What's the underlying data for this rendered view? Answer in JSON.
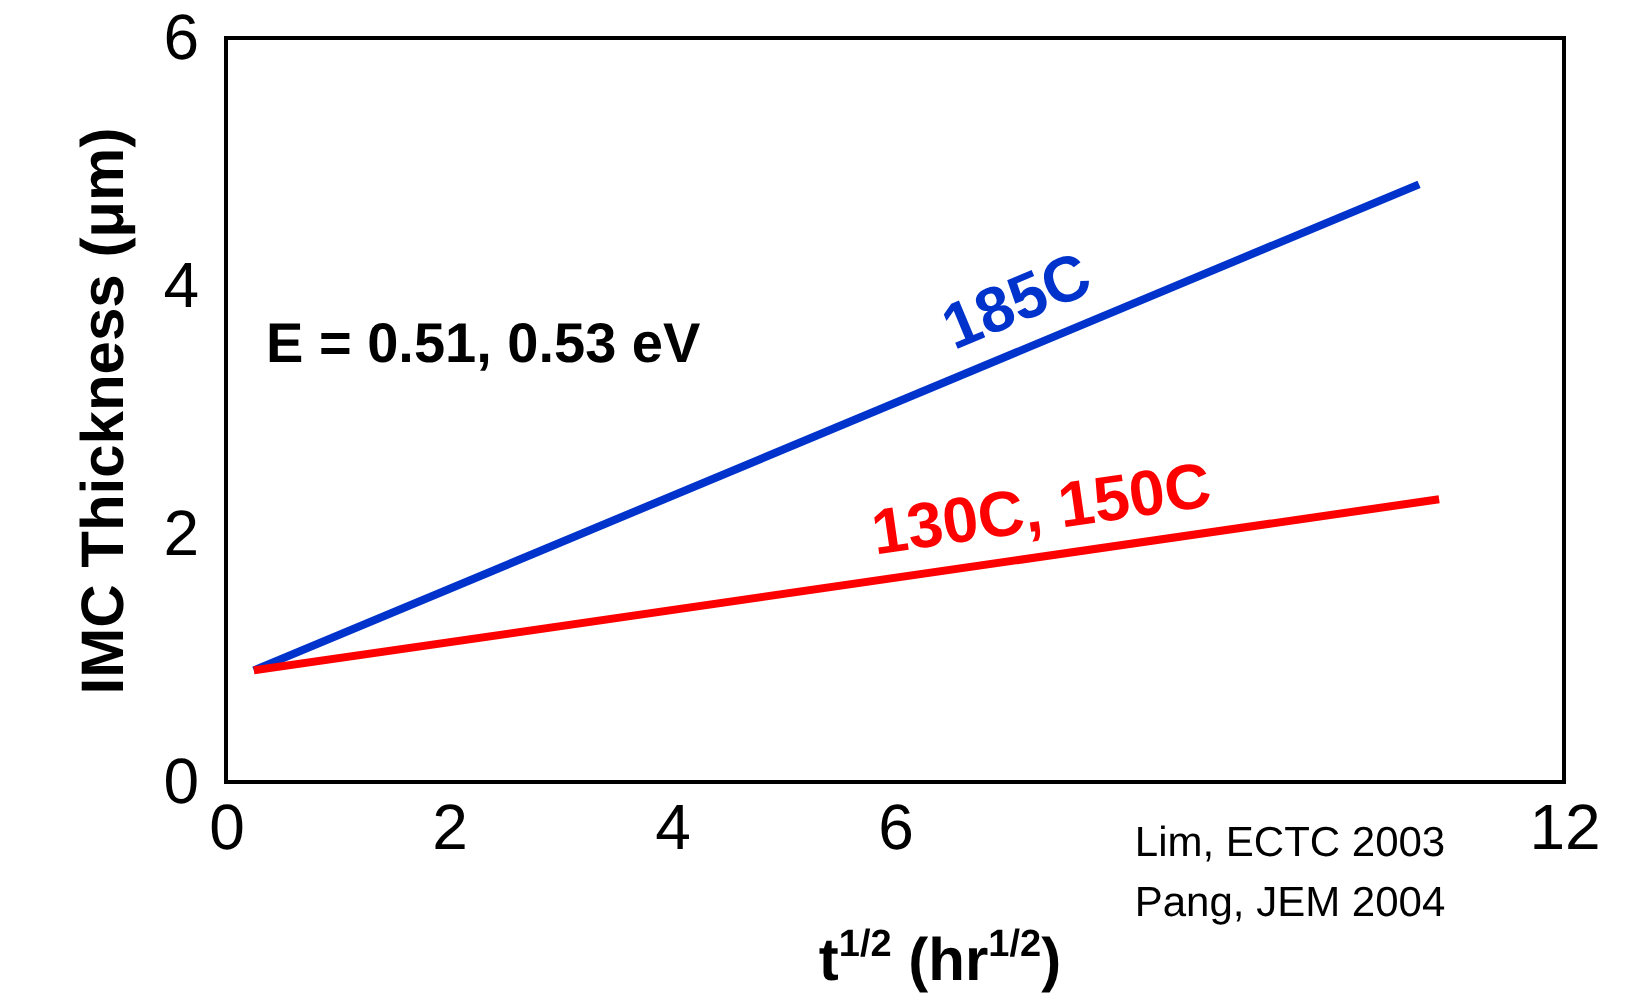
{
  "chart_data": {
    "type": "line",
    "xlabel": "t$^{1/2}$ (hr$^{1/2}$)",
    "ylabel": "IMC Thickness (μm)",
    "xlim": [
      0,
      12
    ],
    "xticks": [
      0,
      2,
      4,
      6,
      12
    ],
    "ylim": [
      0,
      6
    ],
    "yticks": [
      0,
      2,
      4,
      6
    ],
    "grid": false,
    "marker": "none",
    "line_style": "solid",
    "series": [
      {
        "name": "185C",
        "color": "#0033cc",
        "x": [
          0.25,
          10.7
        ],
        "values": [
          0.9,
          4.82
        ]
      },
      {
        "name": "130C, 150C",
        "color": "#ff0000",
        "x": [
          0.25,
          10.88
        ],
        "values": [
          0.9,
          2.28
        ]
      }
    ],
    "annotations": [
      "E = 0.51, 0.53 eV",
      "Lim, ECTC 2003",
      "Pang, JEM 2004"
    ]
  }
}
